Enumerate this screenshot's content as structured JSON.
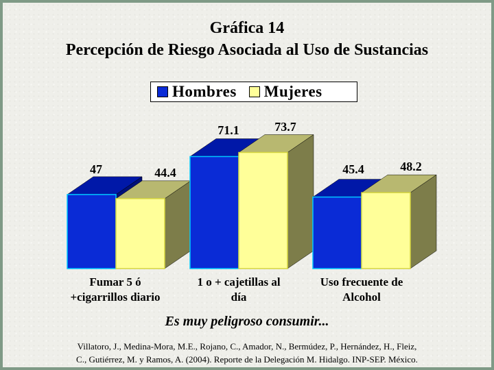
{
  "title": "Gráfica 14",
  "subtitle": "Percepción de Riesgo Asociada al Uso de Sustancias",
  "legend": {
    "items": [
      {
        "label": "Hombres",
        "color": "#0a2bd6"
      },
      {
        "label": "Mujeres",
        "color": "#ffff99"
      }
    ]
  },
  "caption": "Es muy peligroso consumir...",
  "reference": {
    "line1": "Villatoro, J., Medina-Mora, M.E., Rojano, C., Amador, N., Bermúdez, P., Hernández, H., Fleiz,",
    "line2": "C., Gutiérrez, M. y Ramos, A. (2004). Reporte de la Delegación M. Hidalgo. INP-SEP. México."
  },
  "chart_data": {
    "type": "bar",
    "categories": [
      [
        "Fumar 5 ó",
        "+cigarrillos diario"
      ],
      [
        "1 o + cajetillas al",
        "día"
      ],
      [
        "Uso frecuente de",
        "Alcohol"
      ]
    ],
    "series": [
      {
        "name": "Hombres",
        "values": [
          47,
          71.1,
          45.4
        ],
        "labels": [
          "47",
          "71.1",
          "45.4"
        ],
        "color": "#0a2bd6"
      },
      {
        "name": "Mujeres",
        "values": [
          44.4,
          73.7,
          48.2
        ],
        "labels": [
          "44.4",
          "73.7",
          "48.2"
        ],
        "color": "#ffff99"
      }
    ],
    "grid": false,
    "legend_position": "top"
  }
}
